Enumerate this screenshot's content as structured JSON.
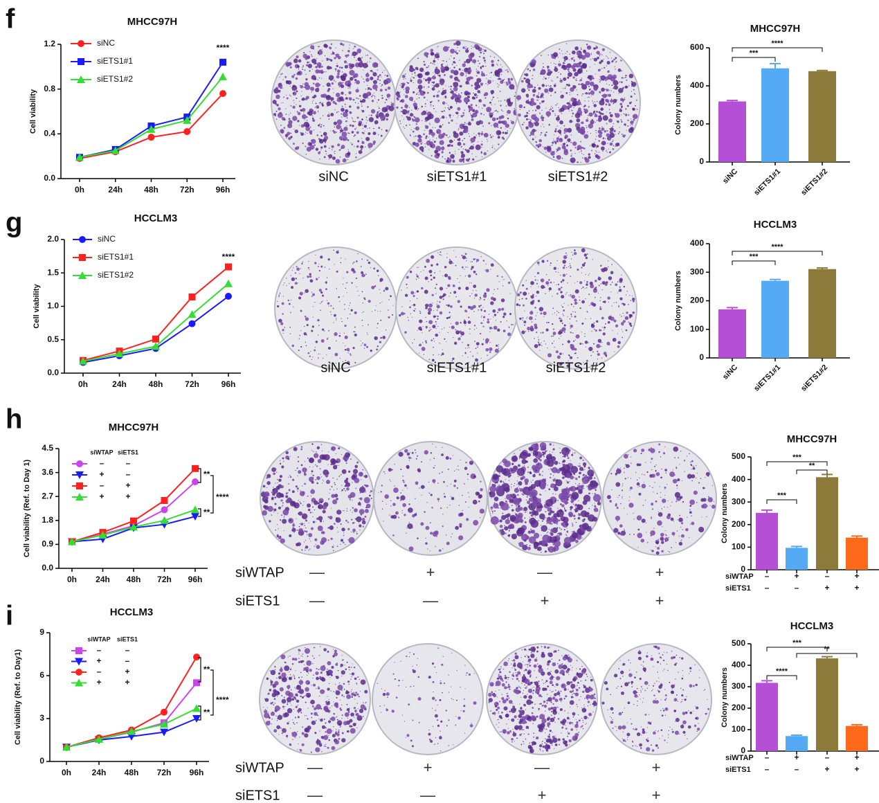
{
  "chart_data": [
    {
      "type": "line",
      "title": "MHCC97H",
      "ylabel": "Cell viability",
      "categories": [
        "0h",
        "24h",
        "48h",
        "72h",
        "96h"
      ],
      "ylim": [
        0,
        1.2
      ],
      "yticks": [
        {
          "value": 0,
          "label": "0.0"
        },
        0.4,
        0.8,
        1.2
      ],
      "series": [
        {
          "name": "siNC",
          "color": "#ff2020",
          "marker": "circle",
          "values": [
            0.18,
            0.24,
            0.37,
            0.42,
            0.76
          ]
        },
        {
          "name": "siETS1#1",
          "color": "#1a1aff",
          "marker": "square",
          "values": [
            0.19,
            0.26,
            0.47,
            0.55,
            1.04
          ]
        },
        {
          "name": "siETS1#2",
          "color": "#33dd33",
          "marker": "triangle",
          "values": [
            0.19,
            0.25,
            0.44,
            0.52,
            0.91
          ]
        }
      ],
      "annotations": [
        "****"
      ]
    },
    {
      "type": "bar",
      "title": "MHCC97H",
      "ylabel": "Colony numbers",
      "categories": [
        "siNC",
        "siETS1#1",
        "siETS1#2"
      ],
      "values": [
        318,
        492,
        477
      ],
      "errors": [
        5,
        25,
        4
      ],
      "colors": [
        "#b44fd6",
        "#55aaf5",
        "#8c7a3a"
      ],
      "ylim": [
        0,
        600
      ],
      "yticks": [
        0,
        200,
        400,
        600
      ],
      "annotations": [
        "***",
        "****"
      ]
    },
    {
      "type": "line",
      "title": "HCCLM3",
      "ylabel": "Cell viability",
      "categories": [
        "0h",
        "24h",
        "48h",
        "72h",
        "96h"
      ],
      "ylim": [
        0,
        2
      ],
      "yticks": [
        {
          "value": 0,
          "label": "0.0"
        },
        0.5,
        {
          "value": 1,
          "label": "1.0"
        },
        1.5,
        {
          "value": 2,
          "label": "2.0"
        }
      ],
      "series": [
        {
          "name": "siNC",
          "color": "#1a1aff",
          "marker": "circle",
          "values": [
            0.16,
            0.26,
            0.37,
            0.74,
            1.15
          ]
        },
        {
          "name": "siETS1#1",
          "color": "#ff2020",
          "marker": "square",
          "values": [
            0.19,
            0.33,
            0.51,
            1.14,
            1.59
          ]
        },
        {
          "name": "siETS1#2",
          "color": "#33dd33",
          "marker": "triangle",
          "values": [
            0.18,
            0.29,
            0.4,
            0.88,
            1.34
          ]
        }
      ],
      "annotations": [
        "****"
      ]
    },
    {
      "type": "bar",
      "title": "HCCLM3",
      "ylabel": "Colony numbers",
      "categories": [
        "siNC",
        "siETS1#1",
        "siETS1#2"
      ],
      "values": [
        170,
        270,
        311
      ],
      "errors": [
        6,
        5,
        4
      ],
      "colors": [
        "#b44fd6",
        "#55aaf5",
        "#8c7a3a"
      ],
      "ylim": [
        0,
        400
      ],
      "yticks": [
        0,
        100,
        200,
        300,
        400
      ],
      "annotations": [
        "***",
        "****"
      ]
    },
    {
      "type": "line",
      "title": "MHCC97H",
      "ylabel": "Cell viability (Ref. to Day 1)",
      "categories": [
        "0h",
        "24h",
        "48h",
        "72h",
        "96h"
      ],
      "ylim": [
        0,
        4.5
      ],
      "yticks": [
        {
          "value": 0,
          "label": "0.0"
        },
        0.9,
        1.8,
        2.7,
        3.6,
        4.5
      ],
      "legend_header": [
        "siWTAP",
        "siETS1"
      ],
      "series": [
        {
          "legend": [
            "–",
            "–"
          ],
          "color": "#cc44ee",
          "marker": "circle",
          "values": [
            1.0,
            1.28,
            1.6,
            2.2,
            3.25
          ]
        },
        {
          "legend": [
            "+",
            "–"
          ],
          "color": "#1a1aff",
          "marker": "down",
          "values": [
            1.0,
            1.1,
            1.52,
            1.65,
            1.95
          ]
        },
        {
          "legend": [
            "–",
            "+"
          ],
          "color": "#ff2020",
          "marker": "square",
          "values": [
            1.0,
            1.35,
            1.78,
            2.55,
            3.75
          ]
        },
        {
          "legend": [
            "+",
            "+"
          ],
          "color": "#33dd33",
          "marker": "triangle",
          "values": [
            1.0,
            1.25,
            1.55,
            1.8,
            2.2
          ]
        }
      ],
      "annotations": [
        "**",
        "****",
        "**"
      ]
    },
    {
      "type": "bar",
      "title": "MHCC97H",
      "ylabel": "Colony numbers",
      "conditions": [
        {
          "name": "siWTAP",
          "signs": [
            "–",
            "+",
            "–",
            "+"
          ]
        },
        {
          "name": "siETS1",
          "signs": [
            "–",
            "–",
            "+",
            "+"
          ]
        }
      ],
      "values": [
        252,
        97,
        410,
        142
      ],
      "errors": [
        12,
        6,
        12,
        7
      ],
      "colors": [
        "#b44fd6",
        "#55aaf5",
        "#8c7a3a",
        "#ff6a1a"
      ],
      "ylim": [
        0,
        500
      ],
      "yticks": [
        0,
        100,
        200,
        300,
        400,
        500
      ],
      "annotations": [
        "***",
        "**",
        "***"
      ]
    },
    {
      "type": "line",
      "title": "HCCLM3",
      "ylabel": "Cell viability (Ref. to Day1)",
      "categories": [
        "0h",
        "24h",
        "48h",
        "72h",
        "96h"
      ],
      "ylim": [
        0,
        9
      ],
      "yticks": [
        0,
        3,
        6,
        9
      ],
      "legend_header": [
        "siWTAP",
        "siETS1"
      ],
      "series": [
        {
          "legend": [
            "–",
            "–"
          ],
          "color": "#cc44ee",
          "marker": "square",
          "values": [
            1.0,
            1.55,
            2.05,
            2.7,
            5.5
          ]
        },
        {
          "legend": [
            "+",
            "–"
          ],
          "color": "#1a1aff",
          "marker": "down",
          "values": [
            1.0,
            1.5,
            1.75,
            2.05,
            3.0
          ]
        },
        {
          "legend": [
            "–",
            "+"
          ],
          "color": "#ff2020",
          "marker": "circle",
          "values": [
            1.0,
            1.65,
            2.2,
            3.45,
            7.3
          ]
        },
        {
          "legend": [
            "+",
            "+"
          ],
          "color": "#33dd33",
          "marker": "triangle",
          "values": [
            1.0,
            1.55,
            2.1,
            2.6,
            3.7
          ]
        }
      ],
      "annotations": [
        "**",
        "****",
        "**"
      ]
    },
    {
      "type": "bar",
      "title": "HCCLM3",
      "ylabel": "Colony numbers",
      "conditions": [
        {
          "name": "siWTAP",
          "signs": [
            "–",
            "+",
            "–",
            "+"
          ]
        },
        {
          "name": "siETS1",
          "signs": [
            "–",
            "–",
            "+",
            "+"
          ]
        }
      ],
      "values": [
        318,
        70,
        432,
        117
      ],
      "errors": [
        10,
        4,
        8,
        6
      ],
      "colors": [
        "#b44fd6",
        "#55aaf5",
        "#8c7a3a",
        "#ff6a1a"
      ],
      "ylim": [
        0,
        500
      ],
      "yticks": [
        0,
        100,
        200,
        300,
        400,
        500
      ],
      "annotations": [
        "***",
        "**",
        "****"
      ]
    }
  ],
  "panels": [
    {
      "letter": "f",
      "plates": [
        "siNC",
        "siETS1#1",
        "siETS1#2"
      ]
    },
    {
      "letter": "g",
      "plates": [
        "siNC",
        "siETS1#1",
        "siETS1#2"
      ]
    },
    {
      "letter": "h",
      "rows": [
        {
          "name": "siWTAP",
          "signs": [
            "—",
            "+",
            "—",
            "+"
          ]
        },
        {
          "name": "siETS1",
          "signs": [
            "—",
            "—",
            "+",
            "+"
          ]
        }
      ]
    },
    {
      "letter": "i",
      "rows": [
        {
          "name": "siWTAP",
          "signs": [
            "—",
            "+",
            "—",
            "+"
          ]
        },
        {
          "name": "siETS1",
          "signs": [
            "—",
            "—",
            "+",
            "+"
          ]
        }
      ]
    }
  ]
}
